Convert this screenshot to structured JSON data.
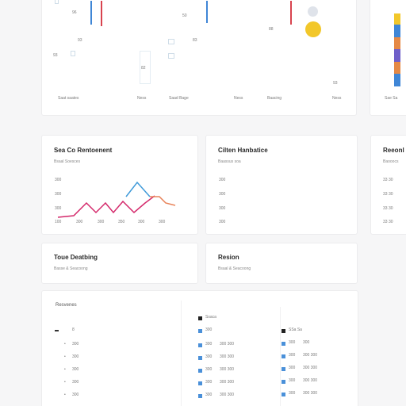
{
  "top_panel": {
    "labels": [
      "Saat saates",
      "Ness",
      "Saad Bage",
      "Ness",
      "Baacing",
      "Ness"
    ],
    "scatter_values": [
      "96",
      "93",
      "50",
      "83",
      "88",
      "93"
    ],
    "small_values": [
      "93",
      "93",
      "82"
    ],
    "right_label": "Sae Sa"
  },
  "colors": {
    "blue": "#3f86d6",
    "red": "#d8434e",
    "teal": "#2db6b8",
    "gold": "#f2c72a",
    "orange": "#e58945",
    "purple": "#6f5fc9",
    "line_blue": "#3f9ad9",
    "line_pink": "#d4296b",
    "line_orange": "#e8835a"
  },
  "card_sales": {
    "title": "Sea Co Rentoenent",
    "subtitle": "Bsaal Soesces",
    "y_ticks": [
      "300",
      "300",
      "300"
    ],
    "x_ticks": [
      "100",
      "300",
      "300",
      "350",
      "300",
      "300"
    ]
  },
  "card_citie": {
    "title": "Cilten Hanbatice",
    "subtitle": "Baassus soa",
    "y_ticks": [
      "300",
      "300",
      "300",
      "300"
    ]
  },
  "card_right_mid": {
    "title": "Reeonl",
    "subtitle": "Baooocs",
    "y_ticks": [
      "33 30",
      "33 30",
      "33 30",
      "33 30"
    ]
  },
  "card_tour": {
    "title": "Toue Deatbing",
    "subtitle": "Basse & Seacoong"
  },
  "card_resion": {
    "title": "Resion",
    "subtitle": "Bsaal & Seacoong"
  },
  "table_panel": {
    "heading": "Resvenes",
    "col1": [
      "8",
      "300",
      "300",
      "300",
      "300",
      "300"
    ],
    "col2_header": "Ssaca",
    "col2": [
      [
        "300",
        ""
      ],
      [
        "300",
        "300 300"
      ],
      [
        "300",
        "300 300"
      ],
      [
        "300",
        "300 300"
      ],
      [
        "300",
        "300 300"
      ],
      [
        "300",
        "300 300"
      ]
    ],
    "col3_header": "SSa Sa",
    "col3": [
      [
        "300",
        "300"
      ],
      [
        "300",
        "300 300"
      ],
      [
        "300",
        "300 300"
      ],
      [
        "300",
        "300 300"
      ],
      [
        "300",
        "300 300"
      ],
      [
        "300",
        "300 300"
      ]
    ]
  }
}
